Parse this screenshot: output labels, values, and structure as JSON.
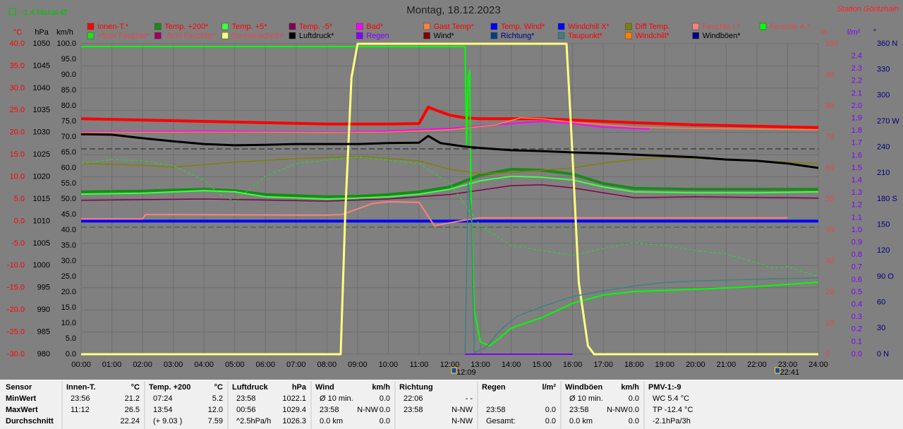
{
  "chart_data": {
    "type": "line",
    "title": "Montag, 18.12.2023",
    "station": "Station Göritzhain",
    "month_average": "-1.4 Monat-Ø",
    "grid": true,
    "xlim": [
      0,
      24
    ],
    "xticks": [
      {
        "value": 0,
        "label": "00:00"
      },
      {
        "value": 1,
        "label": "01:00"
      },
      {
        "value": 2,
        "label": "02:00"
      },
      {
        "value": 3,
        "label": "03:00"
      },
      {
        "value": 4,
        "label": "04:00"
      },
      {
        "value": 5,
        "label": "05:00"
      },
      {
        "value": 6,
        "label": "06:00"
      },
      {
        "value": 7,
        "label": "07:00"
      },
      {
        "value": 8,
        "label": "08:00"
      },
      {
        "value": 9,
        "label": "09:00"
      },
      {
        "value": 10,
        "label": "10:00"
      },
      {
        "value": 11,
        "label": "11:00"
      },
      {
        "value": 12,
        "label": "12:00"
      },
      {
        "value": 13,
        "label": "13:00"
      },
      {
        "value": 14,
        "label": "14:00"
      },
      {
        "value": 15,
        "label": "15:00"
      },
      {
        "value": 16,
        "label": "16:00"
      },
      {
        "value": 17,
        "label": "17:00"
      },
      {
        "value": 18,
        "label": "18:00"
      },
      {
        "value": 19,
        "label": "19:00"
      },
      {
        "value": 20,
        "label": "20:00"
      },
      {
        "value": 21,
        "label": "21:00"
      },
      {
        "value": 22,
        "label": "22:00"
      },
      {
        "value": 23,
        "label": "23:00"
      },
      {
        "value": 24,
        "label": "24:00"
      }
    ],
    "events": [
      {
        "x": 12.15,
        "label": "12:09"
      },
      {
        "x": 22.683,
        "label": "22:41"
      }
    ],
    "axes": [
      {
        "unit": "°C",
        "color": "#ff0000",
        "lim": [
          -30,
          40
        ],
        "ticks": [
          {
            "value": 40,
            "label": "40.0"
          },
          {
            "value": 35,
            "label": "35.0"
          },
          {
            "value": 30,
            "label": "30.0"
          },
          {
            "value": 25,
            "label": "25.0"
          },
          {
            "value": 20,
            "label": "20.0"
          },
          {
            "value": 15,
            "label": "15.0"
          },
          {
            "value": 10,
            "label": "10.0"
          },
          {
            "value": 5,
            "label": "5.0"
          },
          {
            "value": 0,
            "label": "0.0"
          },
          {
            "value": -5,
            "label": "-5.0"
          },
          {
            "value": -10,
            "label": "-10.0"
          },
          {
            "value": -15,
            "label": "-15.0"
          },
          {
            "value": -20,
            "label": "-20.0"
          },
          {
            "value": -25,
            "label": "-25.0"
          },
          {
            "value": -30,
            "label": "-30.0"
          }
        ]
      },
      {
        "unit": "hPa",
        "color": "#000000",
        "lim": [
          980,
          1050
        ],
        "ticks": [
          1050,
          1045,
          1040,
          1035,
          1030,
          1025,
          1020,
          1015,
          1010,
          1005,
          1000,
          995,
          990,
          985,
          980
        ]
      },
      {
        "unit": "km/h",
        "color": "#000000",
        "lim": [
          0,
          100
        ],
        "ticks": [
          {
            "value": 100,
            "label": "100.0"
          },
          {
            "value": 95,
            "label": "95.0"
          },
          {
            "value": 90,
            "label": "90.0"
          },
          {
            "value": 85,
            "label": "85.0"
          },
          {
            "value": 80,
            "label": "80.0"
          },
          {
            "value": 75,
            "label": "75.0"
          },
          {
            "value": 70,
            "label": "70.0"
          },
          {
            "value": 65,
            "label": "65.0"
          },
          {
            "value": 60,
            "label": "60.0"
          },
          {
            "value": 55,
            "label": "55.0"
          },
          {
            "value": 50,
            "label": "50.0"
          },
          {
            "value": 45,
            "label": "45.0"
          },
          {
            "value": 40,
            "label": "40.0"
          },
          {
            "value": 35,
            "label": "35.0"
          },
          {
            "value": 30,
            "label": "30.0"
          },
          {
            "value": 25,
            "label": "25.0"
          },
          {
            "value": 20,
            "label": "20.0"
          },
          {
            "value": 15,
            "label": "15.0"
          },
          {
            "value": 10,
            "label": "10.0"
          },
          {
            "value": 5,
            "label": "5.0"
          },
          {
            "value": 0,
            "label": "0.0"
          }
        ]
      },
      {
        "unit": "%",
        "color": "#e04848",
        "lim": [
          0,
          100
        ],
        "ticks": [
          100,
          90,
          80,
          70,
          60,
          50,
          40,
          30,
          20,
          10,
          0
        ]
      },
      {
        "unit": "l/m²",
        "color": "#8000ff",
        "lim": [
          0,
          2.5
        ],
        "ticks": [
          2.4,
          2.3,
          2.2,
          2.1,
          {
            "value": 2,
            "label": "2.0"
          },
          1.9,
          1.8,
          1.7,
          1.6,
          1.5,
          1.4,
          1.3,
          1.2,
          1.1,
          {
            "value": 1,
            "label": "1.0"
          },
          0.9,
          0.8,
          0.7,
          0.6,
          0.5,
          0.4,
          0.3,
          0.2,
          0.1,
          {
            "value": 0,
            "label": "0.0"
          }
        ]
      },
      {
        "unit": "°",
        "color": "#000080",
        "lim": [
          0,
          360
        ],
        "ticks": [
          {
            "value": 360,
            "label": "360 N"
          },
          330,
          300,
          {
            "value": 270,
            "label": "270 W"
          },
          240,
          210,
          {
            "value": 180,
            "label": "180 S"
          },
          150,
          120,
          {
            "value": 90,
            "label": "90 O"
          },
          60,
          30,
          {
            "value": 0,
            "label": "0 N"
          }
        ]
      }
    ],
    "series": [
      {
        "name": "Innen-T.*",
        "color": "#ff0000",
        "axis": 0,
        "width": 4,
        "x": [
          0,
          2,
          4,
          6,
          8,
          10,
          11,
          11.3,
          11.6,
          12,
          12.5,
          13,
          15,
          16,
          18,
          20,
          22,
          24
        ],
        "values": [
          23.1,
          22.8,
          22.5,
          22.2,
          21.9,
          21.9,
          22.0,
          25.7,
          24.9,
          23.9,
          23.3,
          23.1,
          23.1,
          22.8,
          22.2,
          21.7,
          21.4,
          21.1
        ]
      },
      {
        "name": "Temp. +200*",
        "color": "#1a8a1a",
        "axis": 0,
        "width": 4,
        "x": [
          0,
          2,
          4,
          5,
          6,
          8,
          9,
          10,
          11,
          12,
          13,
          14,
          15,
          16,
          17,
          18,
          20,
          22,
          24
        ],
        "values": [
          6.6,
          6.8,
          7.2,
          6.9,
          6.0,
          5.5,
          5.6,
          6.0,
          6.6,
          7.7,
          10.4,
          11.7,
          11.5,
          10.6,
          8.5,
          7.4,
          7.2,
          7.2,
          7.2
        ]
      },
      {
        "name": "Temp. +5*",
        "color": "#40ff40",
        "axis": 0,
        "width": 2,
        "x": [
          0,
          2,
          4,
          5,
          6,
          8,
          9,
          10,
          11,
          12,
          13,
          14,
          15,
          16,
          17,
          18,
          20,
          22,
          24
        ],
        "values": [
          6.1,
          6.3,
          6.9,
          6.6,
          5.5,
          5.0,
          5.2,
          5.5,
          6.1,
          7.2,
          9.1,
          10.1,
          9.9,
          9.3,
          7.7,
          6.6,
          6.4,
          6.4,
          6.6
        ]
      },
      {
        "name": "Temp. -5*",
        "color": "#800050",
        "axis": 0,
        "width": 1.5,
        "x": [
          0,
          4,
          8,
          10,
          12,
          14,
          15,
          16,
          18,
          20,
          24
        ],
        "values": [
          4.7,
          5.0,
          4.5,
          5.0,
          6.0,
          8.0,
          8.2,
          7.5,
          5.3,
          5.5,
          5.2
        ]
      },
      {
        "name": "Bad*",
        "color": "#ff00ff",
        "axis": 0,
        "width": 2,
        "x": [
          0,
          4,
          8,
          10,
          12,
          14,
          15,
          16,
          17,
          18.5
        ],
        "values": [
          20.1,
          20.3,
          20.1,
          20.3,
          20.9,
          22.0,
          22.5,
          22.0,
          21.2,
          20.8
        ]
      },
      {
        "name": "Gast Temp*",
        "color": "#ff8040",
        "axis": 0,
        "width": 1.5,
        "x": [
          0,
          4,
          8,
          10,
          12,
          13.5,
          14.3,
          15,
          16,
          18,
          20,
          24
        ],
        "values": [
          20.0,
          20.1,
          20.0,
          20.1,
          20.6,
          21.7,
          23.3,
          23.1,
          22.3,
          21.2,
          20.9,
          20.6
        ]
      },
      {
        "name": "Temp. Wind*",
        "color": "#0000ff",
        "axis": 0
      },
      {
        "name": "Windchill X*",
        "color": "#0000ff",
        "axis": 0,
        "width": 4,
        "x": [
          0,
          24
        ],
        "values": [
          0,
          0
        ]
      },
      {
        "name": "Diff Temp.",
        "color": "#808000",
        "axis": 0,
        "width": 1.5,
        "x": [
          0,
          2,
          3,
          5,
          7,
          9,
          11,
          12,
          13,
          14,
          15,
          16,
          17,
          18,
          19,
          20,
          22,
          24
        ],
        "values": [
          13.0,
          12.6,
          12.2,
          13.3,
          14.1,
          14.6,
          13.6,
          11.7,
          10.7,
          11.0,
          11.5,
          12.0,
          13.1,
          13.9,
          14.4,
          14.2,
          13.6,
          13.0
        ]
      },
      {
        "name": "Feuchte I.*",
        "color": "#ff8080",
        "axis": 3,
        "width": 2,
        "x": [
          0,
          2,
          2.1,
          8,
          8.5,
          9.5,
          10,
          11,
          11.2,
          11.5,
          12,
          12.5,
          13,
          23
        ],
        "values": [
          43.6,
          43.6,
          45.0,
          44.8,
          45.0,
          48.6,
          49.1,
          48.9,
          45.9,
          41.4,
          42.3,
          43.2,
          43.9,
          43.9
        ]
      },
      {
        "name": "Feuchte A.*",
        "color": "#00ff00",
        "axis": 3,
        "width": 2,
        "x": [
          0,
          12.5,
          12.55,
          12.6,
          12.65,
          12.7,
          12.8,
          13,
          13.3,
          13.6,
          14,
          15,
          16,
          17,
          18,
          20,
          22,
          23,
          24
        ],
        "values": [
          99.1,
          99.1,
          67.0,
          89.1,
          91.4,
          45.9,
          14.1,
          3.9,
          2.7,
          5.0,
          8.4,
          11.8,
          16.4,
          19.1,
          20.2,
          20.9,
          21.8,
          22.5,
          23.2
        ]
      },
      {
        "name": "+5cm Feuchte*",
        "color": "#20e020",
        "axis": 3,
        "width": 1,
        "dashed": true,
        "x": [
          0,
          1,
          2,
          3,
          4,
          4.5,
          5,
          6,
          7,
          9,
          11,
          12,
          13,
          14,
          15,
          16,
          17,
          18,
          19,
          20,
          21,
          22,
          22.5,
          23,
          24
        ],
        "values": [
          61.4,
          62.7,
          62.3,
          60.7,
          56.1,
          51.6,
          49.3,
          57.3,
          61.4,
          63.6,
          61.4,
          55.0,
          41.4,
          35.0,
          33.4,
          31.8,
          34.1,
          35.9,
          35.0,
          33.4,
          32.3,
          29.5,
          27.7,
          28.2,
          25.0
        ]
      },
      {
        "name": "-5cm Feuchte*",
        "color": "#a00060",
        "axis": 3
      },
      {
        "name": "Sonnenschein*",
        "color": "#ffff80",
        "axis": 3,
        "width": 3,
        "x": [
          0,
          8.45,
          8.6,
          8.8,
          9.0,
          15.8,
          15.95,
          16.2,
          16.5,
          16.7,
          24
        ],
        "values": [
          0,
          0,
          45.9,
          89.1,
          100,
          100,
          73.2,
          23.2,
          2.7,
          0,
          0
        ]
      },
      {
        "name": "Luftdruck*",
        "color": "#000000",
        "axis": 1,
        "width": 3,
        "x": [
          0,
          1,
          2,
          3,
          4,
          5,
          6,
          7,
          8,
          9,
          10,
          11,
          11.3,
          11.7,
          12.5,
          13,
          14,
          15,
          16,
          17,
          18,
          19,
          20,
          21,
          22,
          23,
          24
        ],
        "values": [
          1029.6,
          1029.5,
          1028.7,
          1028.0,
          1027.4,
          1027.1,
          1027.2,
          1027.4,
          1027.4,
          1027.4,
          1027.6,
          1027.7,
          1029.2,
          1027.6,
          1026.8,
          1026.5,
          1026.0,
          1025.8,
          1025.5,
          1025.3,
          1025.0,
          1024.7,
          1024.4,
          1023.9,
          1023.6,
          1023.0,
          1022.0
        ]
      },
      {
        "name": "Regen",
        "color": "#8000ff",
        "axis": 4,
        "width": 2,
        "x": [
          12.5,
          16
        ],
        "values": [
          0,
          0
        ]
      },
      {
        "name": "Wind*",
        "color": "#800000",
        "axis": 2
      },
      {
        "name": "Richtung*",
        "color": "#004080",
        "axis": 5
      },
      {
        "name": "Taupunkt*",
        "color": "#408080",
        "axis": 0,
        "width": 1.5,
        "x": [
          12.5,
          12.6,
          12.7,
          12.8,
          13.2,
          13.6,
          14.2,
          15,
          16,
          17,
          18,
          19,
          20,
          22,
          24
        ],
        "values": [
          -29.7,
          8.5,
          2.1,
          -29.7,
          -28.4,
          -24.9,
          -21.4,
          -19.3,
          -17.0,
          -15.7,
          -14.6,
          -13.8,
          -13.5,
          -13.1,
          -12.8
        ]
      },
      {
        "name": "Windchill*",
        "color": "#ff8000",
        "axis": 0
      },
      {
        "name": "Windböen*",
        "color": "#000080",
        "axis": 2
      }
    ]
  },
  "stats": {
    "row_labels": [
      "Sensor",
      "MinWert",
      "MaxWert",
      "Durchschnitt"
    ],
    "panels": [
      {
        "title": "Innen-T.",
        "unit": "°C",
        "rows": [
          [
            "23:56",
            null,
            "21.2"
          ],
          [
            "11:12",
            null,
            "26.5"
          ],
          [
            null,
            null,
            "22.24"
          ]
        ]
      },
      {
        "title": "Temp. +200",
        "unit": "°C",
        "rows": [
          [
            "07:24",
            null,
            "5.2"
          ],
          [
            "13:54",
            null,
            "12.0"
          ],
          [
            "(+ 9.03 )",
            null,
            "7.59"
          ]
        ]
      },
      {
        "title": "Luftdruck",
        "unit": "hPa",
        "rows": [
          [
            "23:58",
            null,
            "1022.1"
          ],
          [
            "00:56",
            null,
            "1029.4"
          ],
          [
            "^2.5hPa/h",
            null,
            "1026.3"
          ]
        ]
      },
      {
        "title": "Wind",
        "unit": "km/h",
        "rows": [
          [
            "Ø 10 min.",
            null,
            "0.0"
          ],
          [
            "23:58",
            "N-NW",
            "0.0"
          ],
          [
            "0.0 km",
            null,
            "0.0"
          ]
        ]
      },
      {
        "title": "Richtung",
        "unit": null,
        "rows": [
          [
            "22:06",
            null,
            "- -"
          ],
          [
            "23:58",
            null,
            "N-NW"
          ],
          [
            null,
            null,
            "N-NW"
          ]
        ]
      },
      {
        "title": "Regen",
        "unit": "l/m²",
        "rows": [
          [
            null,
            null,
            null
          ],
          [
            "23:58",
            null,
            "0.0"
          ],
          [
            "Gesamt:",
            null,
            "0.0"
          ]
        ]
      },
      {
        "title": "Windböen",
        "unit": "km/h",
        "rows": [
          [
            "Ø 10 min.",
            null,
            "0.0"
          ],
          [
            "23:58",
            "N-NW",
            "0.0"
          ],
          [
            "0.0 km",
            null,
            "0.0"
          ]
        ]
      },
      {
        "title": "PMV-1:-9",
        "unit": null,
        "rows": [
          [
            "WC 5.4 °C",
            null,
            null
          ],
          [
            "TP -12.4 °C",
            null,
            null
          ],
          [
            "-2.1hPa/3h",
            null,
            null
          ]
        ]
      }
    ]
  }
}
